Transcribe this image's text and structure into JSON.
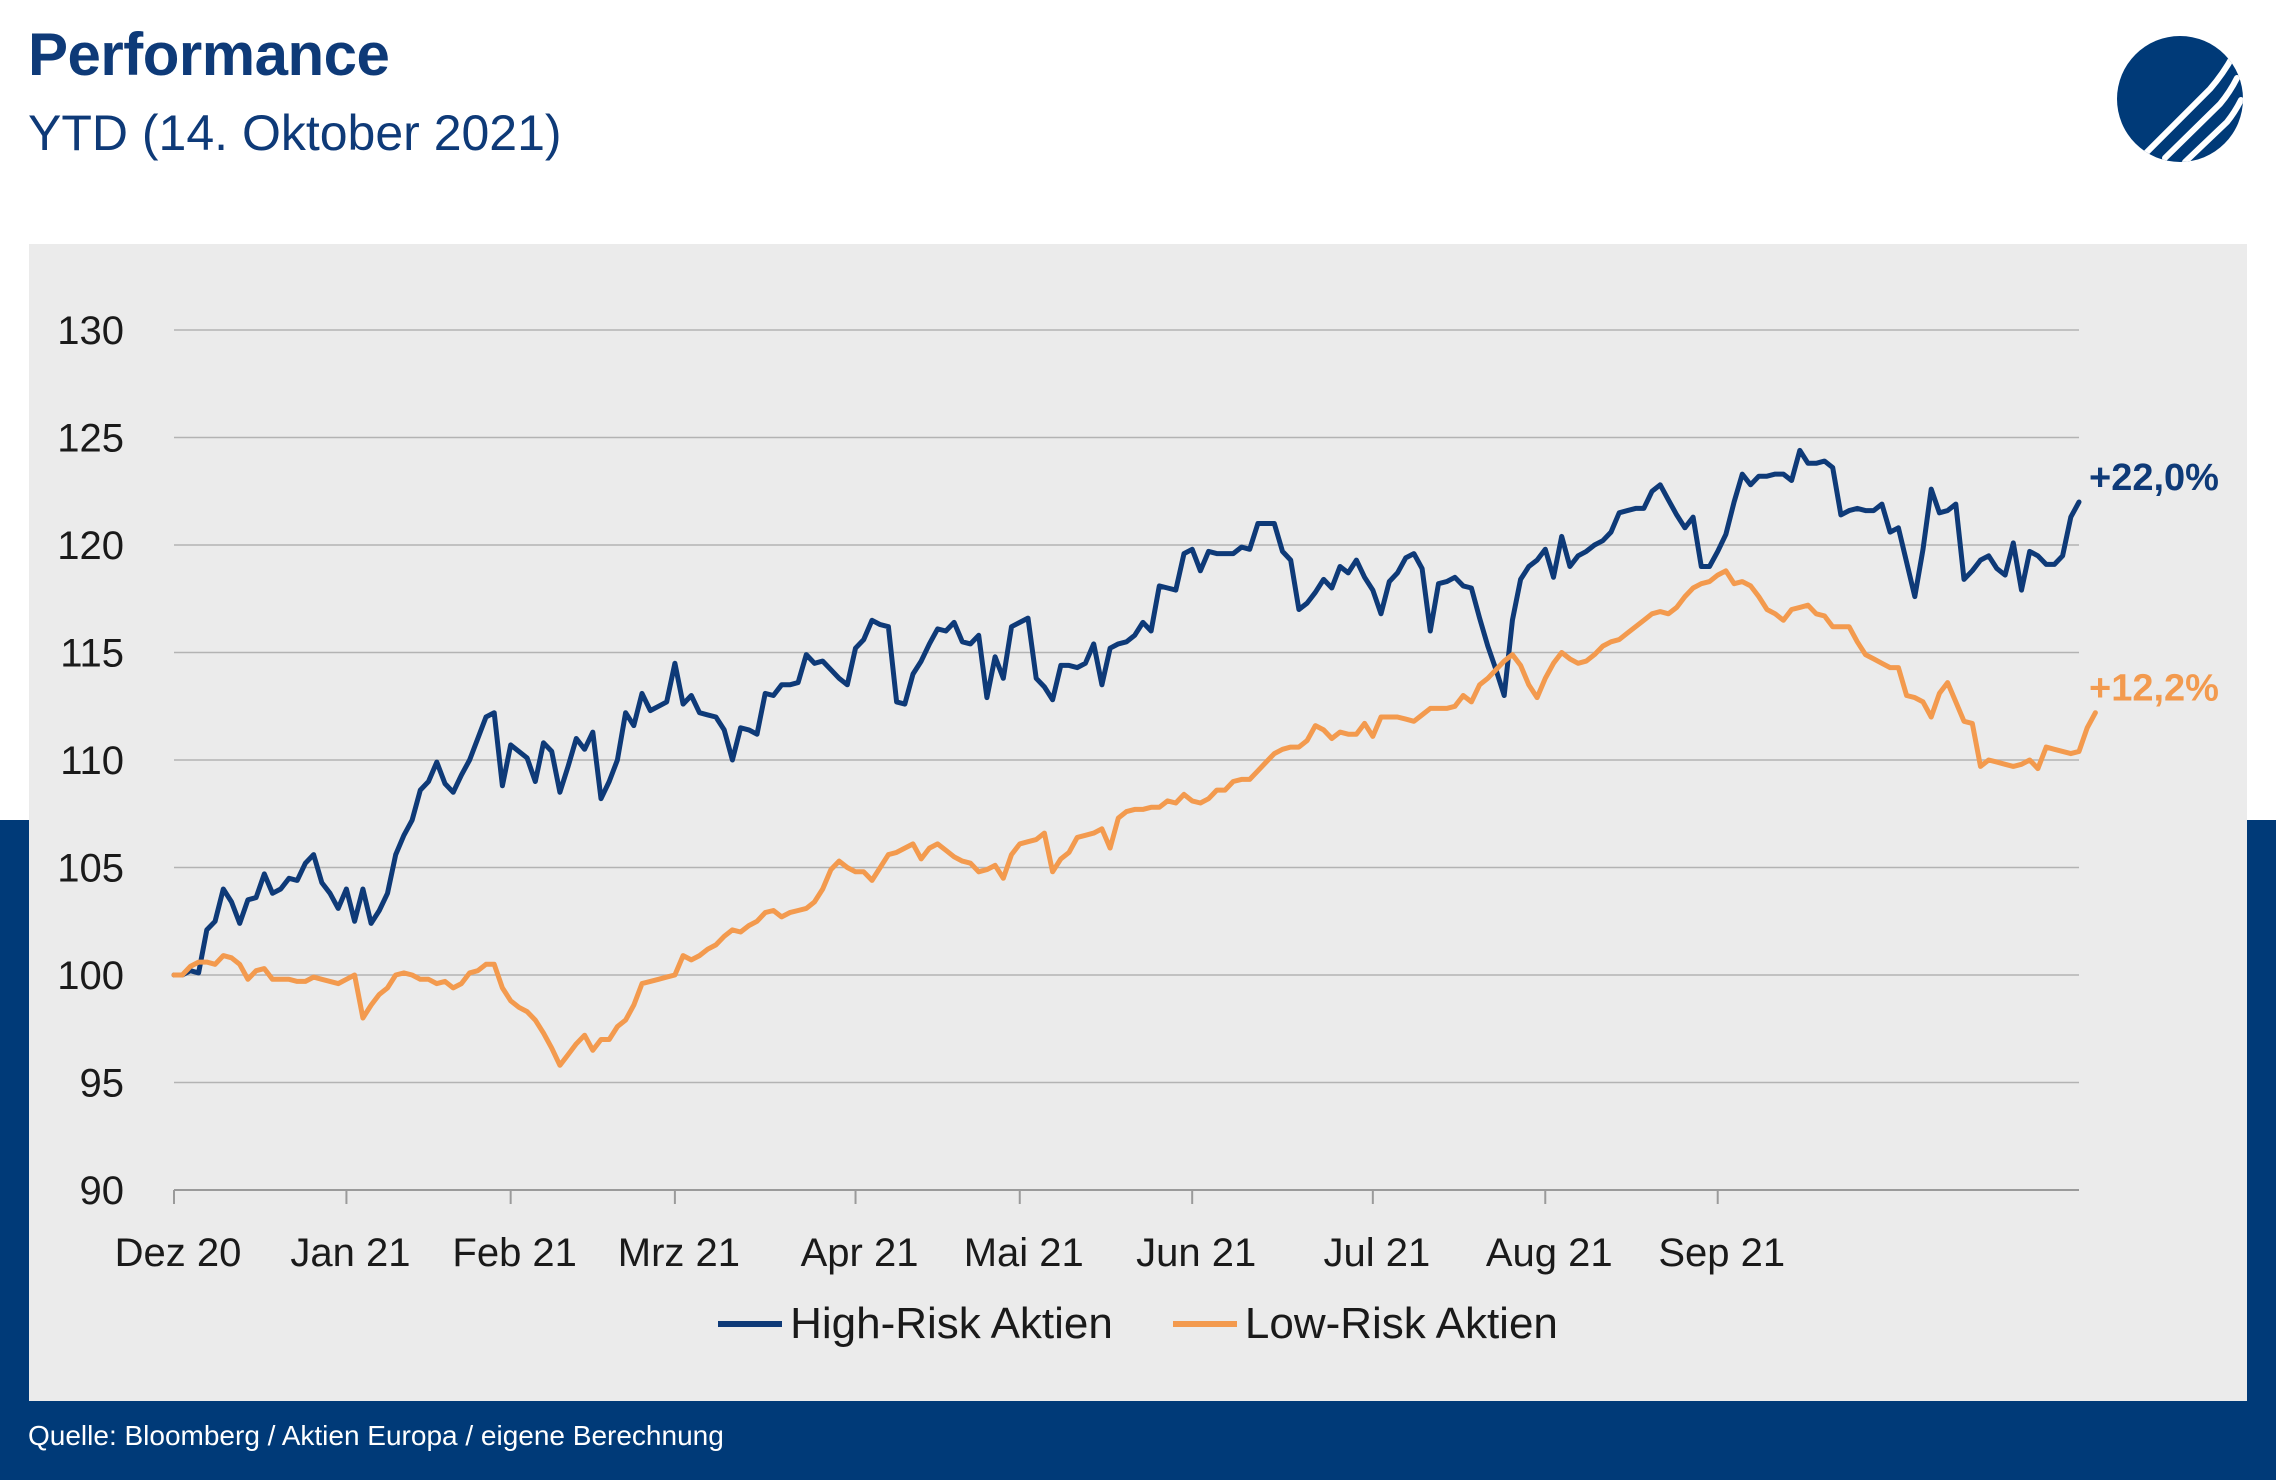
{
  "header": {
    "title": "Performance",
    "subtitle": "YTD (14. Oktober 2021)"
  },
  "logo": {
    "icon": "brand-logo-icon",
    "color": "#003a78"
  },
  "footer": {
    "source": "Quelle: Bloomberg / Aktien Europa / eigene Berechnung"
  },
  "colors": {
    "high": "#0e3a78",
    "low": "#f39a4e",
    "band": "#003a78",
    "panel": "#ebebeb"
  },
  "chart_data": {
    "type": "line",
    "title": "",
    "xlabel": "",
    "ylabel": "",
    "ylim": [
      90,
      130
    ],
    "yticks": [
      90,
      95,
      100,
      105,
      110,
      115,
      120,
      125,
      130
    ],
    "grid": true,
    "legend_position": "bottom",
    "month_labels": [
      "Dez 20",
      "Jan 21",
      "Feb 21",
      "Mrz 21",
      "Apr 21",
      "Mai 21",
      "Jun 21",
      "Jul 21",
      "Aug 21",
      "Sep 21"
    ],
    "series": [
      {
        "name": "High-Risk Aktien",
        "end_label": "+22,0%",
        "values": [
          100.0,
          100.0,
          100.2,
          100.1,
          102.1,
          102.5,
          104.0,
          103.4,
          102.4,
          103.5,
          103.6,
          104.7,
          103.8,
          104.0,
          104.5,
          104.4,
          105.2,
          105.6,
          104.3,
          103.8,
          103.1,
          104.0,
          102.5,
          104.0,
          102.4,
          103.0,
          103.8,
          105.6,
          106.5,
          107.2,
          108.6,
          109.0,
          109.9,
          108.9,
          108.5,
          109.3,
          110.0,
          111.0,
          112.0,
          112.2,
          108.8,
          110.7,
          110.4,
          110.1,
          109.0,
          110.8,
          110.4,
          108.5,
          109.7,
          111.0,
          110.5,
          111.3,
          108.2,
          109.0,
          110.0,
          112.2,
          111.6,
          113.1,
          112.3,
          112.5,
          112.7,
          114.5,
          112.6,
          113.0,
          112.2,
          112.1,
          112.0,
          111.4,
          110.0,
          111.5,
          111.4,
          111.2,
          113.1,
          113.0,
          113.5,
          113.5,
          113.6,
          114.9,
          114.5,
          114.6,
          114.2,
          113.8,
          113.5,
          115.2,
          115.6,
          116.5,
          116.3,
          116.2,
          112.7,
          112.6,
          114.0,
          114.6,
          115.4,
          116.1,
          116.0,
          116.4,
          115.5,
          115.4,
          115.8,
          112.9,
          114.8,
          113.8,
          116.2,
          116.4,
          116.6,
          113.8,
          113.4,
          112.8,
          114.4,
          114.4,
          114.3,
          114.5,
          115.4,
          113.5,
          115.2,
          115.4,
          115.5,
          115.8,
          116.4,
          116.0,
          118.1,
          118.0,
          117.9,
          119.6,
          119.8,
          118.8,
          119.7,
          119.6,
          119.6,
          119.6,
          119.9,
          119.8,
          121.0,
          121.0,
          121.0,
          119.7,
          119.3,
          117.0,
          117.3,
          117.8,
          118.4,
          118.0,
          119.0,
          118.7,
          119.3,
          118.5,
          117.9,
          116.8,
          118.3,
          118.7,
          119.4,
          119.6,
          118.9,
          116.0,
          118.2,
          118.3,
          118.5,
          118.1,
          118.0,
          116.6,
          115.3,
          114.2,
          113.0,
          116.5,
          118.4,
          119.0,
          119.3,
          119.8,
          118.5,
          120.4,
          119.0,
          119.5,
          119.7,
          120.0,
          120.2,
          120.6,
          121.5,
          121.6,
          121.7,
          121.7,
          122.5,
          122.8,
          122.1,
          121.4,
          120.8,
          121.3,
          119.0,
          119.0,
          119.7,
          120.5,
          122.0,
          123.3,
          122.8,
          123.2,
          123.2,
          123.3,
          123.3,
          123.0,
          124.4,
          123.8,
          123.8,
          123.9,
          123.6,
          121.4,
          121.6,
          121.7,
          121.6,
          121.6,
          121.9,
          120.6,
          120.8,
          119.2,
          117.6,
          119.8,
          122.6,
          121.5,
          121.6,
          121.9,
          118.4,
          118.8,
          119.3,
          119.5,
          118.9,
          118.6,
          120.1,
          117.9,
          119.7,
          119.5,
          119.1,
          119.1,
          119.5,
          121.3,
          122.0
        ]
      },
      {
        "name": "Low-Risk Aktien",
        "end_label": "+12,2%",
        "values": [
          100.0,
          100.0,
          100.4,
          100.6,
          100.6,
          100.5,
          100.9,
          100.8,
          100.5,
          99.8,
          100.2,
          100.3,
          99.8,
          99.8,
          99.8,
          99.7,
          99.7,
          99.9,
          99.8,
          99.7,
          99.6,
          99.8,
          100.0,
          98.0,
          98.6,
          99.1,
          99.4,
          100.0,
          100.1,
          100.0,
          99.8,
          99.8,
          99.6,
          99.7,
          99.4,
          99.6,
          100.1,
          100.2,
          100.5,
          100.5,
          99.4,
          98.8,
          98.5,
          98.3,
          97.9,
          97.3,
          96.6,
          95.8,
          96.3,
          96.8,
          97.2,
          96.5,
          97.0,
          97.0,
          97.6,
          97.9,
          98.6,
          99.6,
          99.7,
          99.8,
          99.9,
          100.0,
          100.9,
          100.7,
          100.9,
          101.2,
          101.4,
          101.8,
          102.1,
          102.0,
          102.3,
          102.5,
          102.9,
          103.0,
          102.7,
          102.9,
          103.0,
          103.1,
          103.4,
          104.0,
          104.9,
          105.3,
          105.0,
          104.8,
          104.8,
          104.4,
          105.0,
          105.6,
          105.7,
          105.9,
          106.1,
          105.4,
          105.9,
          106.1,
          105.8,
          105.5,
          105.3,
          105.2,
          104.8,
          104.9,
          105.1,
          104.5,
          105.6,
          106.1,
          106.2,
          106.3,
          106.6,
          104.8,
          105.4,
          105.7,
          106.4,
          106.5,
          106.6,
          106.8,
          105.9,
          107.3,
          107.6,
          107.7,
          107.7,
          107.8,
          107.8,
          108.1,
          108.0,
          108.4,
          108.1,
          108.0,
          108.2,
          108.6,
          108.6,
          109.0,
          109.1,
          109.1,
          109.5,
          109.9,
          110.3,
          110.5,
          110.6,
          110.6,
          110.9,
          111.6,
          111.4,
          111.0,
          111.3,
          111.2,
          111.2,
          111.7,
          111.1,
          112.0,
          112.0,
          112.0,
          111.9,
          111.8,
          112.1,
          112.4,
          112.4,
          112.4,
          112.5,
          113.0,
          112.7,
          113.5,
          113.8,
          114.2,
          114.6,
          114.9,
          114.4,
          113.5,
          112.9,
          113.8,
          114.5,
          115.0,
          114.7,
          114.5,
          114.6,
          114.9,
          115.3,
          115.5,
          115.6,
          115.9,
          116.2,
          116.5,
          116.8,
          116.9,
          116.8,
          117.1,
          117.6,
          118.0,
          118.2,
          118.3,
          118.6,
          118.8,
          118.2,
          118.3,
          118.1,
          117.6,
          117.0,
          116.8,
          116.5,
          117.0,
          117.1,
          117.2,
          116.8,
          116.7,
          116.2,
          116.2,
          116.2,
          115.5,
          114.9,
          114.7,
          114.5,
          114.3,
          114.3,
          113.0,
          112.9,
          112.7,
          112.0,
          113.1,
          113.6,
          112.7,
          111.8,
          111.7,
          109.7,
          110.0,
          109.9,
          109.8,
          109.7,
          109.8,
          110.0,
          109.6,
          110.6,
          110.5,
          110.4,
          110.3,
          110.4,
          111.5,
          112.2
        ]
      }
    ]
  }
}
